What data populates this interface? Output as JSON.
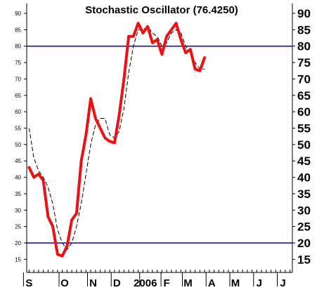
{
  "chart_data": {
    "type": "line",
    "title": "Stochastic Oscillator (76.4250)",
    "ylim": [
      11,
      93
    ],
    "y_ticks": [
      15,
      20,
      25,
      30,
      35,
      40,
      45,
      50,
      55,
      60,
      65,
      70,
      75,
      80,
      85,
      90
    ],
    "x_tick_labels": [
      "S",
      "O",
      "N",
      "D",
      "2006",
      "F",
      "M",
      "A",
      "M",
      "J",
      "J"
    ],
    "x_tick_index": [
      0,
      7.5,
      13.5,
      18.5,
      24.5,
      29,
      33.5,
      38.5,
      43.5,
      48.5,
      53.5
    ],
    "x_range": [
      -0.5,
      55.5
    ],
    "reference_lines": [
      80,
      20
    ],
    "grid": false,
    "colors": {
      "main_line": "#ee1111",
      "signal_line": "#000000",
      "reference": "#0000cc",
      "axis": "#000000"
    },
    "series": [
      {
        "role": "main",
        "values": [
          43,
          40,
          41,
          39,
          28,
          25,
          16.5,
          16,
          19,
          27,
          29,
          45,
          53,
          64,
          58,
          55,
          52,
          51,
          50.5,
          59,
          70,
          83,
          83,
          87,
          84,
          86,
          81,
          82,
          77.5,
          83,
          85,
          87,
          82,
          78,
          79,
          73,
          72.5,
          76.5
        ]
      },
      {
        "role": "signal",
        "values": [
          55,
          46,
          42,
          40,
          37,
          32,
          24,
          20,
          18,
          20,
          25,
          32,
          41,
          50,
          56,
          58,
          58,
          53,
          52,
          54,
          61,
          72,
          80,
          85,
          85,
          86,
          84,
          83,
          80,
          81,
          84,
          85,
          84,
          80,
          78,
          75,
          73,
          73
        ]
      }
    ]
  }
}
